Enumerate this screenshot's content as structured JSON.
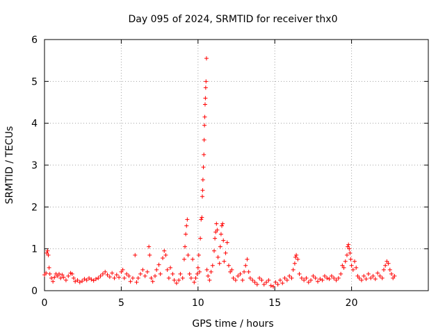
{
  "chart_data": {
    "type": "scatter",
    "title": "Day 095 of 2024, SRMTID for receiver thx0",
    "xlabel": "GPS time / hours",
    "ylabel": "SRMTID / TECUs",
    "xlim": [
      0,
      25
    ],
    "ylim": [
      0,
      6
    ],
    "x_ticks": [
      0,
      5,
      10,
      15,
      20
    ],
    "y_ticks": [
      0,
      1,
      2,
      3,
      4,
      5,
      6
    ],
    "grid": true,
    "marker": "+",
    "color": "#ff0000",
    "series": [
      {
        "name": "SRMTID",
        "points": [
          [
            0.0,
            0.38
          ],
          [
            0.1,
            0.42
          ],
          [
            0.15,
            0.9
          ],
          [
            0.2,
            0.95
          ],
          [
            0.25,
            0.85
          ],
          [
            0.3,
            0.55
          ],
          [
            0.35,
            0.4
          ],
          [
            0.45,
            0.3
          ],
          [
            0.55,
            0.22
          ],
          [
            0.65,
            0.32
          ],
          [
            0.75,
            0.4
          ],
          [
            0.85,
            0.35
          ],
          [
            0.95,
            0.4
          ],
          [
            1.05,
            0.3
          ],
          [
            1.15,
            0.38
          ],
          [
            1.25,
            0.32
          ],
          [
            1.4,
            0.25
          ],
          [
            1.55,
            0.35
          ],
          [
            1.7,
            0.42
          ],
          [
            1.8,
            0.4
          ],
          [
            1.9,
            0.3
          ],
          [
            2.0,
            0.22
          ],
          [
            2.15,
            0.25
          ],
          [
            2.3,
            0.2
          ],
          [
            2.45,
            0.23
          ],
          [
            2.6,
            0.28
          ],
          [
            2.75,
            0.25
          ],
          [
            2.9,
            0.3
          ],
          [
            3.05,
            0.27
          ],
          [
            3.2,
            0.24
          ],
          [
            3.35,
            0.28
          ],
          [
            3.5,
            0.3
          ],
          [
            3.65,
            0.35
          ],
          [
            3.8,
            0.4
          ],
          [
            3.95,
            0.45
          ],
          [
            4.1,
            0.38
          ],
          [
            4.25,
            0.33
          ],
          [
            4.4,
            0.42
          ],
          [
            4.55,
            0.3
          ],
          [
            4.7,
            0.38
          ],
          [
            4.85,
            0.32
          ],
          [
            5.0,
            0.45
          ],
          [
            5.1,
            0.5
          ],
          [
            5.2,
            0.3
          ],
          [
            5.35,
            0.4
          ],
          [
            5.5,
            0.35
          ],
          [
            5.6,
            0.22
          ],
          [
            5.75,
            0.3
          ],
          [
            5.9,
            0.85
          ],
          [
            6.0,
            0.2
          ],
          [
            6.1,
            0.3
          ],
          [
            6.25,
            0.4
          ],
          [
            6.4,
            0.5
          ],
          [
            6.55,
            0.35
          ],
          [
            6.7,
            0.45
          ],
          [
            6.8,
            1.05
          ],
          [
            6.85,
            0.85
          ],
          [
            6.95,
            0.3
          ],
          [
            7.05,
            0.22
          ],
          [
            7.2,
            0.35
          ],
          [
            7.3,
            0.5
          ],
          [
            7.45,
            0.62
          ],
          [
            7.55,
            0.4
          ],
          [
            7.7,
            0.78
          ],
          [
            7.8,
            0.95
          ],
          [
            7.9,
            0.85
          ],
          [
            8.0,
            0.5
          ],
          [
            8.1,
            0.3
          ],
          [
            8.2,
            0.55
          ],
          [
            8.35,
            0.4
          ],
          [
            8.45,
            0.25
          ],
          [
            8.6,
            0.18
          ],
          [
            8.75,
            0.25
          ],
          [
            8.85,
            0.4
          ],
          [
            9.0,
            0.3
          ],
          [
            9.1,
            0.75
          ],
          [
            9.15,
            1.05
          ],
          [
            9.2,
            1.35
          ],
          [
            9.25,
            1.55
          ],
          [
            9.3,
            1.7
          ],
          [
            9.35,
            0.85
          ],
          [
            9.45,
            0.4
          ],
          [
            9.55,
            0.3
          ],
          [
            9.65,
            0.75
          ],
          [
            9.75,
            0.2
          ],
          [
            9.85,
            0.3
          ],
          [
            9.95,
            0.4
          ],
          [
            10.0,
            0.55
          ],
          [
            10.05,
            0.85
          ],
          [
            10.1,
            0.45
          ],
          [
            10.15,
            1.25
          ],
          [
            10.2,
            1.7
          ],
          [
            10.25,
            1.75
          ],
          [
            10.28,
            2.25
          ],
          [
            10.3,
            2.4
          ],
          [
            10.32,
            2.65
          ],
          [
            10.35,
            2.95
          ],
          [
            10.38,
            3.25
          ],
          [
            10.4,
            3.6
          ],
          [
            10.42,
            3.95
          ],
          [
            10.44,
            4.15
          ],
          [
            10.46,
            4.45
          ],
          [
            10.48,
            4.6
          ],
          [
            10.5,
            4.85
          ],
          [
            10.52,
            5.0
          ],
          [
            10.55,
            5.55
          ],
          [
            10.58,
            0.5
          ],
          [
            10.65,
            0.35
          ],
          [
            10.75,
            0.25
          ],
          [
            10.85,
            0.45
          ],
          [
            10.95,
            0.6
          ],
          [
            11.05,
            0.95
          ],
          [
            11.1,
            1.25
          ],
          [
            11.15,
            1.4
          ],
          [
            11.2,
            1.6
          ],
          [
            11.25,
            1.45
          ],
          [
            11.3,
            0.8
          ],
          [
            11.4,
            0.65
          ],
          [
            11.45,
            1.05
          ],
          [
            11.5,
            1.35
          ],
          [
            11.55,
            1.55
          ],
          [
            11.6,
            1.6
          ],
          [
            11.65,
            1.2
          ],
          [
            11.7,
            0.7
          ],
          [
            11.8,
            0.9
          ],
          [
            11.9,
            1.15
          ],
          [
            12.0,
            0.6
          ],
          [
            12.1,
            0.45
          ],
          [
            12.2,
            0.5
          ],
          [
            12.3,
            0.3
          ],
          [
            12.45,
            0.25
          ],
          [
            12.6,
            0.35
          ],
          [
            12.75,
            0.4
          ],
          [
            12.9,
            0.25
          ],
          [
            13.0,
            0.45
          ],
          [
            13.1,
            0.6
          ],
          [
            13.2,
            0.75
          ],
          [
            13.3,
            0.45
          ],
          [
            13.4,
            0.3
          ],
          [
            13.55,
            0.25
          ],
          [
            13.7,
            0.2
          ],
          [
            13.85,
            0.15
          ],
          [
            14.0,
            0.3
          ],
          [
            14.15,
            0.25
          ],
          [
            14.3,
            0.15
          ],
          [
            14.45,
            0.2
          ],
          [
            14.6,
            0.25
          ],
          [
            14.75,
            0.12
          ],
          [
            14.9,
            0.1
          ],
          [
            15.05,
            0.2
          ],
          [
            15.2,
            0.15
          ],
          [
            15.35,
            0.25
          ],
          [
            15.5,
            0.18
          ],
          [
            15.65,
            0.3
          ],
          [
            15.8,
            0.25
          ],
          [
            15.95,
            0.35
          ],
          [
            16.1,
            0.3
          ],
          [
            16.2,
            0.5
          ],
          [
            16.3,
            0.65
          ],
          [
            16.35,
            0.8
          ],
          [
            16.4,
            0.85
          ],
          [
            16.5,
            0.75
          ],
          [
            16.6,
            0.4
          ],
          [
            16.75,
            0.3
          ],
          [
            16.9,
            0.25
          ],
          [
            17.05,
            0.3
          ],
          [
            17.2,
            0.2
          ],
          [
            17.35,
            0.25
          ],
          [
            17.5,
            0.35
          ],
          [
            17.65,
            0.3
          ],
          [
            17.8,
            0.22
          ],
          [
            17.95,
            0.28
          ],
          [
            18.1,
            0.25
          ],
          [
            18.25,
            0.35
          ],
          [
            18.4,
            0.3
          ],
          [
            18.55,
            0.28
          ],
          [
            18.7,
            0.35
          ],
          [
            18.85,
            0.3
          ],
          [
            19.0,
            0.25
          ],
          [
            19.15,
            0.3
          ],
          [
            19.3,
            0.4
          ],
          [
            19.4,
            0.6
          ],
          [
            19.5,
            0.55
          ],
          [
            19.6,
            0.7
          ],
          [
            19.7,
            0.85
          ],
          [
            19.75,
            1.05
          ],
          [
            19.8,
            1.1
          ],
          [
            19.85,
            1.0
          ],
          [
            19.9,
            0.9
          ],
          [
            19.95,
            0.75
          ],
          [
            20.0,
            0.6
          ],
          [
            20.1,
            0.5
          ],
          [
            20.2,
            0.7
          ],
          [
            20.3,
            0.55
          ],
          [
            20.4,
            0.35
          ],
          [
            20.5,
            0.3
          ],
          [
            20.65,
            0.25
          ],
          [
            20.8,
            0.35
          ],
          [
            20.95,
            0.28
          ],
          [
            21.1,
            0.4
          ],
          [
            21.25,
            0.3
          ],
          [
            21.4,
            0.35
          ],
          [
            21.55,
            0.28
          ],
          [
            21.7,
            0.42
          ],
          [
            21.85,
            0.35
          ],
          [
            22.0,
            0.3
          ],
          [
            22.1,
            0.5
          ],
          [
            22.2,
            0.6
          ],
          [
            22.3,
            0.7
          ],
          [
            22.4,
            0.65
          ],
          [
            22.5,
            0.5
          ],
          [
            22.6,
            0.4
          ],
          [
            22.7,
            0.3
          ],
          [
            22.8,
            0.35
          ]
        ]
      }
    ]
  }
}
